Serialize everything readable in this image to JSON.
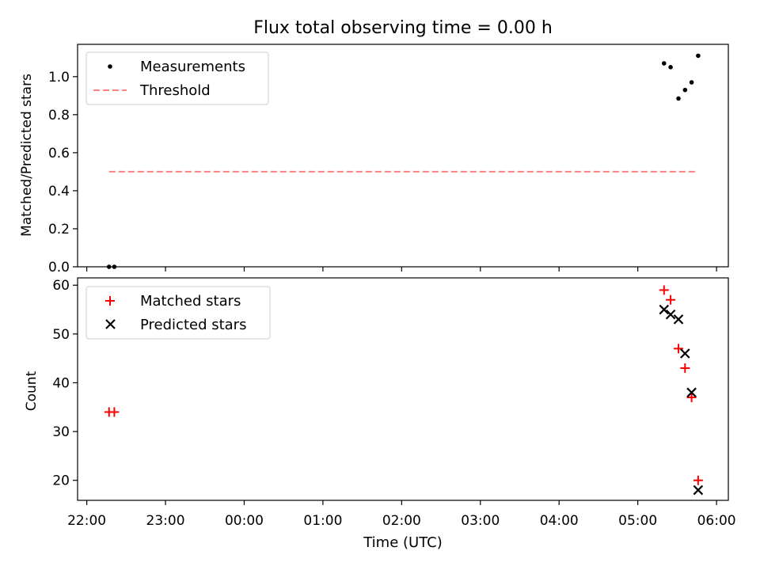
{
  "chart_data": [
    {
      "type": "scatter",
      "title": "Flux total observing time = 0.00 h",
      "xlabel": "",
      "ylabel": "Matched/Predicted stars",
      "x_type": "time",
      "xlim": [
        "21:53",
        "06:09"
      ],
      "ylim": [
        0,
        1.17
      ],
      "yticks": [
        0.0,
        0.2,
        0.4,
        0.6,
        0.8,
        1.0
      ],
      "ytick_labels": [
        "0.0",
        "0.2",
        "0.4",
        "0.6",
        "0.8",
        "1.0"
      ],
      "grid": false,
      "legend_position": "upper-left",
      "series": [
        {
          "name": "Measurements",
          "kind": "scatter",
          "marker": "dot",
          "color": "#000000",
          "points": [
            {
              "x": "22:17",
              "y": 0.0
            },
            {
              "x": "22:21",
              "y": 0.0
            },
            {
              "x": "05:20",
              "y": 1.07
            },
            {
              "x": "05:25",
              "y": 1.05
            },
            {
              "x": "05:31",
              "y": 0.885
            },
            {
              "x": "05:36",
              "y": 0.93
            },
            {
              "x": "05:41",
              "y": 0.97
            },
            {
              "x": "05:46",
              "y": 1.11
            }
          ]
        },
        {
          "name": "Threshold",
          "kind": "line",
          "dash": "dashed",
          "color": "#ff7f7f",
          "points": [
            {
              "x": "22:17",
              "y": 0.5
            },
            {
              "x": "05:46",
              "y": 0.5
            }
          ]
        }
      ]
    },
    {
      "type": "scatter",
      "title": "",
      "xlabel": "Time (UTC)",
      "ylabel": "Count",
      "x_type": "time",
      "xlim": [
        "21:53",
        "06:09"
      ],
      "ylim": [
        15.9,
        61.5
      ],
      "yticks": [
        20,
        30,
        40,
        50,
        60
      ],
      "ytick_labels": [
        "20",
        "30",
        "40",
        "50",
        "60"
      ],
      "xticks": [
        "22:00",
        "23:00",
        "00:00",
        "01:00",
        "02:00",
        "03:00",
        "04:00",
        "05:00",
        "06:00"
      ],
      "grid": false,
      "legend_position": "upper-left",
      "series": [
        {
          "name": "Matched stars",
          "kind": "scatter",
          "marker": "plus",
          "color": "#ff0000",
          "points": [
            {
              "x": "22:17",
              "y": 34
            },
            {
              "x": "22:21",
              "y": 34
            },
            {
              "x": "05:20",
              "y": 59
            },
            {
              "x": "05:25",
              "y": 57
            },
            {
              "x": "05:31",
              "y": 47
            },
            {
              "x": "05:36",
              "y": 43
            },
            {
              "x": "05:41",
              "y": 37
            },
            {
              "x": "05:46",
              "y": 20
            }
          ]
        },
        {
          "name": "Predicted stars",
          "kind": "scatter",
          "marker": "x",
          "color": "#000000",
          "points": [
            {
              "x": "05:20",
              "y": 55
            },
            {
              "x": "05:25",
              "y": 54
            },
            {
              "x": "05:31",
              "y": 53
            },
            {
              "x": "05:36",
              "y": 46
            },
            {
              "x": "05:41",
              "y": 38
            },
            {
              "x": "05:46",
              "y": 18
            }
          ]
        }
      ]
    }
  ]
}
